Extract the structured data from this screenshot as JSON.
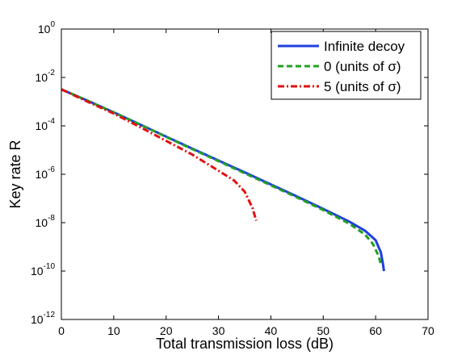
{
  "chart_data": {
    "type": "line",
    "xlabel": "Total transmission loss (dB)",
    "ylabel": "Key rate R",
    "xlim": [
      0,
      70
    ],
    "ylim": [
      1e-12,
      1
    ],
    "yscale": "log",
    "xticks": [
      "0",
      "10",
      "20",
      "30",
      "40",
      "50",
      "60",
      "70"
    ],
    "yticks": [
      {
        "base": "10",
        "exp": "0"
      },
      {
        "base": "10",
        "exp": "-2"
      },
      {
        "base": "10",
        "exp": "-4"
      },
      {
        "base": "10",
        "exp": "-6"
      },
      {
        "base": "10",
        "exp": "-8"
      },
      {
        "base": "10",
        "exp": "-10"
      },
      {
        "base": "10",
        "exp": "-12"
      }
    ],
    "grid": false,
    "legend_position": "top-right",
    "series": [
      {
        "name": "Infinite decoy",
        "color": "#1f3fe0",
        "style": "solid",
        "x": [
          0,
          5,
          10,
          15,
          20,
          25,
          30,
          35,
          40,
          45,
          50,
          55,
          58,
          60,
          61,
          61.4,
          61.6
        ],
        "y": [
          0.0032,
          0.0011,
          0.00036,
          0.000115,
          3.6e-05,
          1.15e-05,
          3.7e-06,
          1.2e-06,
          3.8e-07,
          1.2e-07,
          3.7e-08,
          1.1e-08,
          4.6e-09,
          1.9e-09,
          6e-10,
          2e-10,
          1e-10
        ]
      },
      {
        "name": "0 (units of σ)",
        "color": "#22a022",
        "style": "dashed",
        "x": [
          0,
          5,
          10,
          15,
          20,
          25,
          30,
          35,
          40,
          45,
          50,
          55,
          58,
          59.5,
          60.5,
          61
        ],
        "y": [
          0.0032,
          0.0011,
          0.00036,
          0.000115,
          3.5e-05,
          1.1e-05,
          3.5e-06,
          1.1e-06,
          3.5e-07,
          1.1e-07,
          3.3e-08,
          9e-09,
          3.2e-09,
          1.3e-09,
          4.5e-10,
          2e-10
        ]
      },
      {
        "name": "5 (units of σ)",
        "color": "#e01010",
        "style": "dashdot",
        "x": [
          0,
          5,
          10,
          15,
          20,
          25,
          30,
          33,
          35,
          36.5,
          37.2
        ],
        "y": [
          0.0032,
          0.001,
          0.00032,
          9e-05,
          2.4e-05,
          6.5e-06,
          1.4e-06,
          5.5e-07,
          1.9e-07,
          4e-08,
          1.2e-08
        ]
      }
    ]
  }
}
